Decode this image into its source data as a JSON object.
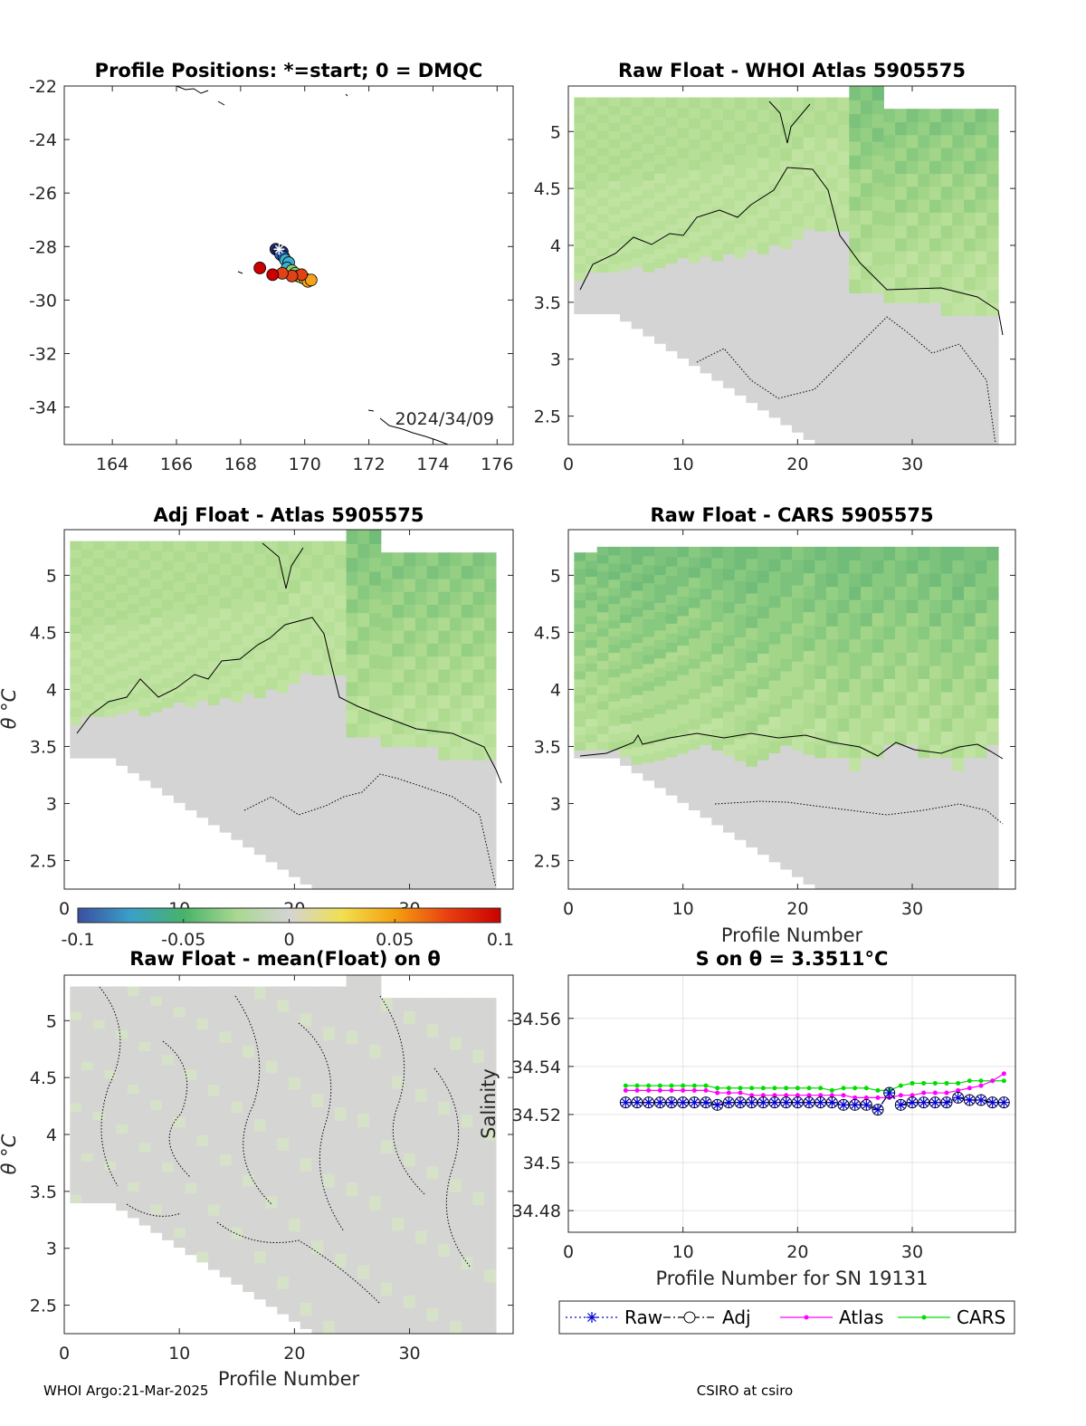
{
  "footer": {
    "left": "WHOI Argo:21-Mar-2025",
    "right": "CSIRO at csiro"
  },
  "colors": {
    "raw": "#0000cc",
    "adj": "#000000",
    "atlas": "#ff00ff",
    "cars": "#00dd00"
  },
  "chart_data": [
    {
      "id": "positions",
      "type": "scatter",
      "title": "Profile Positions: *=start; 0 = DMQC",
      "xlim": [
        162.5,
        176.5
      ],
      "ylim": [
        -35.4,
        -22
      ],
      "xticks": [
        164,
        166,
        168,
        170,
        172,
        174,
        176
      ],
      "yticks": [
        -22,
        -24,
        -26,
        -28,
        -30,
        -32,
        -34
      ],
      "annotation": "2024/34/09",
      "points_lonlat": [
        [
          169.1,
          -28.1
        ],
        [
          169.2,
          -28.15
        ],
        [
          169.3,
          -28.2
        ],
        [
          169.25,
          -28.3
        ],
        [
          169.35,
          -28.4
        ],
        [
          169.4,
          -28.5
        ],
        [
          169.5,
          -28.6
        ],
        [
          169.45,
          -28.8
        ],
        [
          169.6,
          -28.9
        ],
        [
          169.7,
          -29.0
        ],
        [
          169.8,
          -29.1
        ],
        [
          169.9,
          -29.15
        ],
        [
          170.0,
          -29.2
        ],
        [
          170.1,
          -29.3
        ],
        [
          170.2,
          -29.25
        ],
        [
          169.9,
          -29.05
        ],
        [
          169.6,
          -29.1
        ],
        [
          169.3,
          -29.0
        ],
        [
          169.0,
          -29.05
        ],
        [
          168.6,
          -28.8
        ]
      ],
      "start": [
        169.2,
        -28.1
      ],
      "colorscale": [
        "#1f2a6b",
        "#2b5fb5",
        "#3ab0d0",
        "#8fd06a",
        "#e8e83a",
        "#f3a21c",
        "#e04216",
        "#cc0000"
      ]
    },
    {
      "id": "raw-whoi",
      "type": "heatmap",
      "title": "Raw Float - WHOI Atlas  5905575",
      "xlim": [
        0,
        39
      ],
      "ylim": [
        2.25,
        5.4
      ],
      "xticks": [
        0,
        10,
        20,
        30
      ],
      "yticks": [
        2.5,
        3,
        3.5,
        4,
        4.5,
        5
      ]
    },
    {
      "id": "adj-atlas",
      "type": "heatmap",
      "title": "Adj Float - Atlas  5905575",
      "ylabel": "θ °C",
      "xlim": [
        0,
        39
      ],
      "ylim": [
        2.25,
        5.4
      ],
      "xticks": [
        0,
        10,
        20,
        30
      ],
      "yticks": [
        2.5,
        3,
        3.5,
        4,
        4.5,
        5
      ]
    },
    {
      "id": "raw-cars",
      "type": "heatmap",
      "title": "Raw Float - CARS  5905575",
      "xlabel": "Profile Number",
      "xlim": [
        0,
        39
      ],
      "ylim": [
        2.25,
        5.4
      ],
      "xticks": [
        0,
        10,
        20,
        30
      ],
      "yticks": [
        2.5,
        3,
        3.5,
        4,
        4.5,
        5
      ]
    },
    {
      "id": "raw-mean",
      "type": "heatmap",
      "title": "Raw Float - mean(Float) on θ",
      "ylabel": "θ °C",
      "xlabel": "Profile Number",
      "xlim": [
        0,
        39
      ],
      "ylim": [
        2.25,
        5.4
      ],
      "xticks": [
        0,
        10,
        20,
        30
      ],
      "yticks": [
        2.5,
        3,
        3.5,
        4,
        4.5,
        5
      ]
    },
    {
      "id": "colorbar",
      "type": "heatmap",
      "range": [
        -0.1,
        0.1
      ],
      "ticks": [
        "-0.1",
        "-0.05",
        "0",
        "0.05",
        "0.1"
      ],
      "stops": [
        "#3a4fa0",
        "#3aa0c8",
        "#48b26a",
        "#a8d890",
        "#d4d4d4",
        "#f0e050",
        "#f5a010",
        "#e84010",
        "#cc0000"
      ]
    },
    {
      "id": "salinity",
      "type": "line",
      "title": "S on θ = 3.3511°C",
      "xlabel": "Profile Number for SN 19131",
      "ylabel": "Salinity",
      "xlim": [
        0,
        39
      ],
      "ylim": [
        34.471,
        34.578
      ],
      "xticks": [
        0,
        10,
        20,
        30
      ],
      "yticks": [
        34.48,
        34.5,
        34.52,
        34.54,
        34.56
      ],
      "ytick_labels": [
        "34.48",
        "34.5",
        "34.52",
        "34.54",
        "34.56"
      ],
      "x": [
        5,
        6,
        7,
        8,
        9,
        10,
        11,
        12,
        13,
        14,
        15,
        16,
        17,
        18,
        19,
        20,
        21,
        22,
        23,
        24,
        25,
        26,
        27,
        28,
        29,
        30,
        31,
        32,
        33,
        34,
        35,
        36,
        37,
        38
      ],
      "series": [
        {
          "name": "Raw",
          "values": [
            34.525,
            34.525,
            34.525,
            34.525,
            34.525,
            34.525,
            34.525,
            34.525,
            34.524,
            34.525,
            34.525,
            34.525,
            34.525,
            34.525,
            34.525,
            34.525,
            34.525,
            34.525,
            34.525,
            34.524,
            34.524,
            34.524,
            34.522,
            34.529,
            34.524,
            34.525,
            34.525,
            34.525,
            34.525,
            34.527,
            34.526,
            34.526,
            34.525,
            34.525
          ]
        },
        {
          "name": "Adj",
          "values": [
            34.525,
            34.525,
            34.525,
            34.525,
            34.525,
            34.525,
            34.525,
            34.525,
            34.524,
            34.525,
            34.525,
            34.525,
            34.525,
            34.525,
            34.525,
            34.525,
            34.525,
            34.525,
            34.525,
            34.524,
            34.524,
            34.524,
            34.522,
            34.529,
            34.524,
            34.525,
            34.525,
            34.525,
            34.525,
            34.527,
            34.526,
            34.526,
            34.525,
            34.525
          ]
        },
        {
          "name": "Atlas",
          "values": [
            34.53,
            34.53,
            34.53,
            34.53,
            34.53,
            34.53,
            34.53,
            34.53,
            34.529,
            34.529,
            34.529,
            34.528,
            34.528,
            34.528,
            34.528,
            34.528,
            34.528,
            34.528,
            34.528,
            34.528,
            34.527,
            34.527,
            34.527,
            34.527,
            34.528,
            34.528,
            34.529,
            34.529,
            34.529,
            34.53,
            34.531,
            34.532,
            34.534,
            34.537
          ]
        },
        {
          "name": "CARS",
          "values": [
            34.532,
            34.532,
            34.532,
            34.532,
            34.532,
            34.532,
            34.532,
            34.532,
            34.531,
            34.531,
            34.531,
            34.531,
            34.531,
            34.531,
            34.531,
            34.531,
            34.531,
            34.531,
            34.53,
            34.531,
            34.531,
            34.531,
            34.53,
            34.53,
            34.532,
            34.533,
            34.533,
            34.533,
            34.533,
            34.533,
            34.534,
            34.534,
            34.534,
            34.534
          ]
        }
      ]
    }
  ]
}
